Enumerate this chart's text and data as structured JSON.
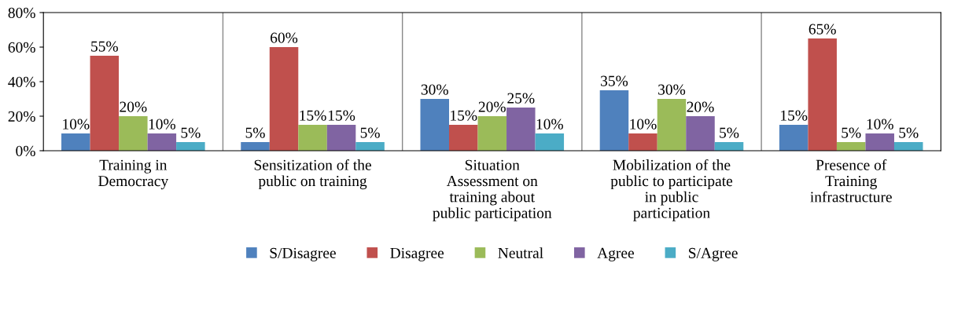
{
  "chart_data": {
    "type": "bar",
    "categories": [
      "Training in\nDemocracy",
      "Sensitization of the\npublic on training",
      "Situation\nAssessment on\ntraining about\npublic participation",
      "Mobilization of the\npublic to participate\nin public\nparticipation",
      "Presence of\nTraining\ninfrastructure"
    ],
    "series": [
      {
        "name": "S/Disagree",
        "color": "#4f81bd",
        "values": [
          10,
          5,
          30,
          35,
          15
        ],
        "value_labels": [
          "10%",
          "5%",
          "30%",
          "35%",
          "15%"
        ]
      },
      {
        "name": "Disagree",
        "color": "#c0504d",
        "values": [
          55,
          60,
          15,
          10,
          65
        ],
        "value_labels": [
          "55%",
          "60%",
          "15%",
          "10%",
          "65%"
        ]
      },
      {
        "name": "Neutral",
        "color": "#9bbb59",
        "values": [
          20,
          15,
          20,
          30,
          5
        ],
        "value_labels": [
          "20%",
          "15%",
          "20%",
          "30%",
          "5%"
        ]
      },
      {
        "name": "Agree",
        "color": "#8064a2",
        "values": [
          10,
          15,
          25,
          20,
          10
        ],
        "value_labels": [
          "10%",
          "15%",
          "25%",
          "20%",
          "10%"
        ]
      },
      {
        "name": "S/Agree",
        "color": "#4bacc6",
        "values": [
          5,
          5,
          10,
          5,
          5
        ],
        "value_labels": [
          "5%",
          "5%",
          "10%",
          "5%",
          "5%"
        ]
      }
    ],
    "ylim": [
      0,
      80
    ],
    "yticks": [
      {
        "value": 0,
        "label": "0%"
      },
      {
        "value": 20,
        "label": "20%"
      },
      {
        "value": 40,
        "label": "40%"
      },
      {
        "value": 60,
        "label": "60%"
      },
      {
        "value": 80,
        "label": "80%"
      }
    ],
    "grid": "x",
    "legend": "bottom"
  }
}
